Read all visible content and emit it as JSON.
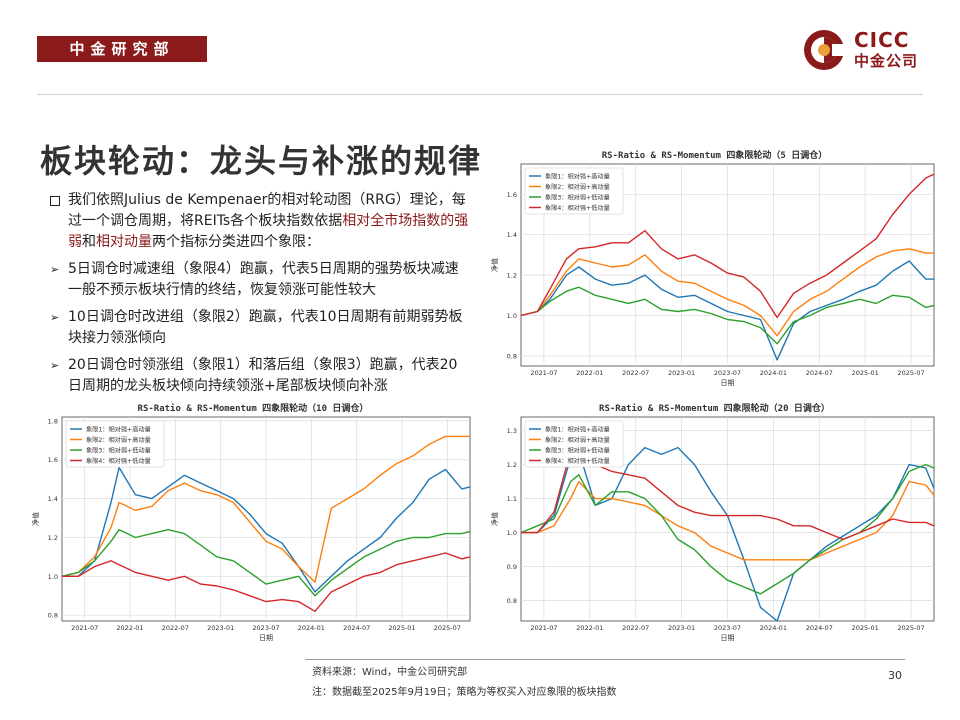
{
  "header": {
    "department": "中金研究部",
    "logo_en": "CICC",
    "logo_cn": "中金公司",
    "brand_color": "#8b1a1a"
  },
  "title": "板块轮动：龙头与补涨的规律",
  "bullets": [
    {
      "marker": "square",
      "parts": [
        {
          "text": "我们依照Julius de Kempenaer的相对轮动图（RRG）理论，每过一个调仓周期，将REITs各个板块指数依据",
          "hl": false
        },
        {
          "text": "相对全市场指数的强弱",
          "hl": true
        },
        {
          "text": "和",
          "hl": false
        },
        {
          "text": "相对动量",
          "hl": true
        },
        {
          "text": "两个指标分类进四个象限：",
          "hl": false
        }
      ]
    },
    {
      "marker": "arrow",
      "parts": [
        {
          "text": "5日调仓时减速组（象限4）跑赢，代表5日周期的强势板块减速一般不预示板块行情的终结，恢复领涨可能性较大",
          "hl": false
        }
      ]
    },
    {
      "marker": "arrow",
      "parts": [
        {
          "text": "10日调仓时改进组（象限2）跑赢，代表10日周期有前期弱势板块接力领涨倾向",
          "hl": false
        }
      ]
    },
    {
      "marker": "arrow",
      "parts": [
        {
          "text": "20日调仓时领涨组（象限1）和落后组（象限3）跑赢，代表20日周期的龙头板块倾向持续领涨+尾部板块倾向补涨",
          "hl": false
        }
      ]
    }
  ],
  "footer": {
    "source": "资料来源：Wind，中金公司研究部",
    "note": "注：数据截至2025年9月19日；策略为等权买入对应象限的板块指数",
    "page": "30"
  },
  "chart_data": [
    {
      "type": "line",
      "title": "RS-Ratio & RS-Momentum 四象限轮动（5 日调仓）",
      "xlabel": "日期",
      "ylabel": "净值",
      "x_ticks": [
        "2021-07",
        "2022-01",
        "2022-07",
        "2023-01",
        "2023-07",
        "2024-01",
        "2024-07",
        "2025-01",
        "2025-07"
      ],
      "x_range": [
        0,
        100
      ],
      "ylim": [
        0.75,
        1.75
      ],
      "y_ticks": [
        "0.8",
        "1.0",
        "1.2",
        "1.4",
        "1.6"
      ],
      "legend": "top-left",
      "grid": true,
      "x": [
        0,
        4,
        7,
        11,
        14,
        18,
        22,
        26,
        30,
        34,
        38,
        42,
        46,
        50,
        54,
        58,
        62,
        66,
        70,
        74,
        78,
        82,
        86,
        90,
        94,
        98,
        100
      ],
      "series": [
        {
          "name": "象限1：相对强+高动量",
          "color": "#1f77b4",
          "values": [
            1.0,
            1.02,
            1.08,
            1.2,
            1.24,
            1.18,
            1.15,
            1.16,
            1.2,
            1.13,
            1.09,
            1.1,
            1.06,
            1.02,
            1.0,
            0.98,
            0.78,
            0.96,
            1.02,
            1.05,
            1.08,
            1.12,
            1.15,
            1.22,
            1.27,
            1.18,
            1.18
          ]
        },
        {
          "name": "象限2：相对弱+高动量",
          "color": "#ff7f0e",
          "values": [
            1.0,
            1.02,
            1.1,
            1.22,
            1.28,
            1.26,
            1.24,
            1.25,
            1.3,
            1.22,
            1.17,
            1.16,
            1.12,
            1.08,
            1.05,
            1.0,
            0.9,
            1.02,
            1.08,
            1.12,
            1.18,
            1.24,
            1.29,
            1.32,
            1.33,
            1.31,
            1.31
          ]
        },
        {
          "name": "象限3：相对弱+低动量",
          "color": "#2ca02c",
          "values": [
            1.0,
            1.02,
            1.07,
            1.12,
            1.14,
            1.1,
            1.08,
            1.06,
            1.08,
            1.03,
            1.02,
            1.03,
            1.01,
            0.98,
            0.97,
            0.94,
            0.86,
            0.97,
            1.0,
            1.04,
            1.06,
            1.08,
            1.06,
            1.1,
            1.09,
            1.04,
            1.05
          ]
        },
        {
          "name": "象限4：相对强+低动量",
          "color": "#d62728",
          "values": [
            1.0,
            1.02,
            1.13,
            1.28,
            1.33,
            1.34,
            1.36,
            1.36,
            1.42,
            1.33,
            1.28,
            1.3,
            1.26,
            1.21,
            1.19,
            1.12,
            0.99,
            1.11,
            1.16,
            1.2,
            1.26,
            1.32,
            1.38,
            1.5,
            1.6,
            1.68,
            1.7
          ]
        }
      ]
    },
    {
      "type": "line",
      "title": "RS-Ratio & RS-Momentum 四象限轮动（10 日调仓）",
      "xlabel": "日期",
      "ylabel": "净值",
      "x_ticks": [
        "2021-07",
        "2022-01",
        "2022-07",
        "2023-01",
        "2023-07",
        "2024-01",
        "2024-07",
        "2025-01",
        "2025-07"
      ],
      "x_range": [
        0,
        100
      ],
      "ylim": [
        0.77,
        1.82
      ],
      "y_ticks": [
        "0.8",
        "1.0",
        "1.2",
        "1.4",
        "1.6",
        "1.8"
      ],
      "legend": "top-left",
      "grid": true,
      "x": [
        0,
        4,
        8,
        12,
        14,
        18,
        22,
        26,
        30,
        34,
        38,
        42,
        46,
        50,
        54,
        58,
        62,
        66,
        70,
        74,
        78,
        82,
        86,
        90,
        94,
        98,
        100
      ],
      "series": [
        {
          "name": "象限1：相对强+高动量",
          "color": "#1f77b4",
          "values": [
            1.0,
            1.0,
            1.08,
            1.38,
            1.56,
            1.42,
            1.4,
            1.46,
            1.52,
            1.48,
            1.44,
            1.4,
            1.32,
            1.22,
            1.17,
            1.05,
            0.92,
            1.0,
            1.08,
            1.14,
            1.2,
            1.3,
            1.38,
            1.5,
            1.55,
            1.45,
            1.46
          ]
        },
        {
          "name": "象限2：相对弱+高动量",
          "color": "#ff7f0e",
          "values": [
            1.0,
            1.02,
            1.1,
            1.25,
            1.38,
            1.34,
            1.36,
            1.44,
            1.48,
            1.44,
            1.42,
            1.38,
            1.28,
            1.18,
            1.14,
            1.05,
            0.97,
            1.35,
            1.4,
            1.45,
            1.52,
            1.58,
            1.62,
            1.68,
            1.72,
            1.72,
            1.72
          ]
        },
        {
          "name": "象限3：相对弱+低动量",
          "color": "#2ca02c",
          "values": [
            1.0,
            1.02,
            1.08,
            1.18,
            1.24,
            1.2,
            1.22,
            1.24,
            1.22,
            1.16,
            1.1,
            1.08,
            1.02,
            0.96,
            0.98,
            1.0,
            0.9,
            0.98,
            1.04,
            1.1,
            1.14,
            1.18,
            1.2,
            1.2,
            1.22,
            1.22,
            1.23
          ]
        },
        {
          "name": "象限4：相对强+低动量",
          "color": "#d62728",
          "values": [
            1.0,
            1.0,
            1.05,
            1.08,
            1.06,
            1.02,
            1.0,
            0.98,
            1.0,
            0.96,
            0.95,
            0.93,
            0.9,
            0.87,
            0.88,
            0.87,
            0.82,
            0.92,
            0.96,
            1.0,
            1.02,
            1.06,
            1.08,
            1.1,
            1.12,
            1.09,
            1.1
          ]
        }
      ]
    },
    {
      "type": "line",
      "title": "RS-Ratio & RS-Momentum 四象限轮动（20 日调仓）",
      "xlabel": "日期",
      "ylabel": "净值",
      "x_ticks": [
        "2021-07",
        "2022-01",
        "2022-07",
        "2023-01",
        "2023-07",
        "2024-01",
        "2024-07",
        "2025-01",
        "2025-07"
      ],
      "x_range": [
        0,
        100
      ],
      "ylim": [
        0.74,
        1.34
      ],
      "y_ticks": [
        "0.8",
        "0.9",
        "1.0",
        "1.1",
        "1.2",
        "1.3"
      ],
      "legend": "top-left",
      "grid": true,
      "x": [
        0,
        4,
        8,
        12,
        14,
        18,
        22,
        26,
        30,
        34,
        38,
        42,
        46,
        50,
        54,
        58,
        62,
        66,
        70,
        74,
        78,
        82,
        86,
        90,
        94,
        98,
        100
      ],
      "series": [
        {
          "name": "象限1：相对强+高动量",
          "color": "#1f77b4",
          "values": [
            1.0,
            1.0,
            1.05,
            1.22,
            1.24,
            1.08,
            1.1,
            1.2,
            1.25,
            1.23,
            1.25,
            1.2,
            1.12,
            1.05,
            0.92,
            0.78,
            0.74,
            0.88,
            0.92,
            0.96,
            0.99,
            1.02,
            1.05,
            1.1,
            1.2,
            1.19,
            1.13
          ]
        },
        {
          "name": "象限2：相对弱+高动量",
          "color": "#ff7f0e",
          "values": [
            1.0,
            1.0,
            1.02,
            1.1,
            1.15,
            1.1,
            1.1,
            1.09,
            1.08,
            1.05,
            1.02,
            1.0,
            0.96,
            0.94,
            0.92,
            0.92,
            0.92,
            0.92,
            0.92,
            0.94,
            0.96,
            0.98,
            1.0,
            1.05,
            1.15,
            1.14,
            1.11
          ]
        },
        {
          "name": "象限3：相对弱+低动量",
          "color": "#2ca02c",
          "values": [
            1.0,
            1.02,
            1.04,
            1.15,
            1.17,
            1.08,
            1.12,
            1.12,
            1.1,
            1.05,
            0.98,
            0.95,
            0.9,
            0.86,
            0.84,
            0.82,
            0.85,
            0.88,
            0.92,
            0.95,
            0.98,
            1.0,
            1.04,
            1.1,
            1.18,
            1.2,
            1.19
          ]
        },
        {
          "name": "象限4：相对强+低动量",
          "color": "#d62728",
          "values": [
            1.0,
            1.0,
            1.06,
            1.24,
            1.25,
            1.2,
            1.18,
            1.17,
            1.16,
            1.12,
            1.08,
            1.06,
            1.05,
            1.05,
            1.05,
            1.05,
            1.04,
            1.02,
            1.02,
            1.0,
            0.98,
            1.0,
            1.02,
            1.04,
            1.03,
            1.03,
            1.02
          ]
        }
      ]
    }
  ]
}
